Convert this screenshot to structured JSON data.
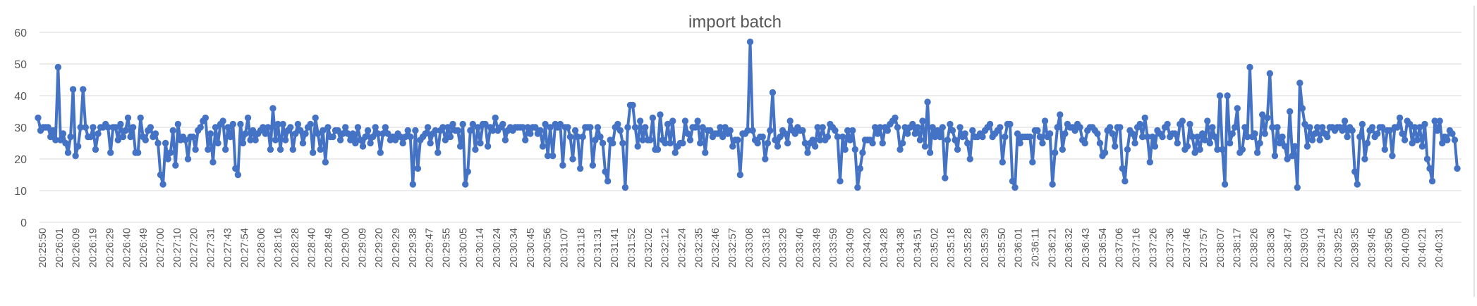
{
  "chart_data": {
    "type": "line",
    "title": "import batch",
    "xlabel": "",
    "ylabel": "",
    "ylim": [
      0,
      60
    ],
    "ytick_step": 10,
    "grid": true,
    "legend": "none",
    "colors": {
      "series": "#4472c4",
      "grid": "#d9d9d9",
      "text": "#595959"
    },
    "x_tick_labels": [
      "20:25:50",
      "20:26:01",
      "20:26:09",
      "20:26:19",
      "20:26:29",
      "20:26:40",
      "20:26:49",
      "20:27:00",
      "20:27:10",
      "20:27:20",
      "20:27:31",
      "20:27:43",
      "20:27:54",
      "20:28:06",
      "20:28:16",
      "20:28:28",
      "20:28:40",
      "20:28:49",
      "20:29:00",
      "20:29:09",
      "20:29:20",
      "20:29:29",
      "20:29:38",
      "20:29:47",
      "20:29:55",
      "20:30:05",
      "20:30:14",
      "20:30:24",
      "20:30:34",
      "20:30:45",
      "20:30:56",
      "20:31:07",
      "20:31:18",
      "20:31:31",
      "20:31:41",
      "20:31:52",
      "20:32:02",
      "20:32:12",
      "20:32:24",
      "20:32:35",
      "20:32:46",
      "20:32:57",
      "20:33:08",
      "20:33:18",
      "20:33:29",
      "20:33:40",
      "20:33:49",
      "20:33:59",
      "20:34:09",
      "20:34:20",
      "20:34:28",
      "20:34:38",
      "20:34:51",
      "20:35:02",
      "20:35:18",
      "20:35:28",
      "20:35:39",
      "20:35:50",
      "20:36:01",
      "20:36:11",
      "20:36:21",
      "20:36:32",
      "20:36:43",
      "20:36:54",
      "20:37:06",
      "20:37:16",
      "20:37:26",
      "20:37:36",
      "20:37:46",
      "20:37:57",
      "20:38:07",
      "20:38:17",
      "20:38:26",
      "20:38:36",
      "20:38:47",
      "20:39:03",
      "20:39:14",
      "20:39:25",
      "20:39:35",
      "20:39:45",
      "20:39:56",
      "20:40:09",
      "20:40:21",
      "20:40:31"
    ],
    "series": [
      {
        "values": [
          33,
          29,
          30,
          30,
          30,
          27,
          29,
          26,
          49,
          26,
          28,
          25,
          22,
          27,
          42,
          21,
          24,
          30,
          42,
          30,
          27,
          27,
          30,
          23,
          28,
          30,
          30,
          31,
          30,
          22,
          30,
          30,
          26,
          31,
          27,
          29,
          33,
          27,
          30,
          22,
          22,
          33,
          27,
          26,
          29,
          30,
          27,
          28,
          25,
          15,
          12,
          25,
          20,
          22,
          29,
          18,
          31,
          26,
          27,
          26,
          20,
          27,
          27,
          23,
          29,
          30,
          32,
          33,
          23,
          28,
          19,
          30,
          25,
          31,
          32,
          23,
          30,
          27,
          31,
          17,
          15,
          31,
          25,
          28,
          33,
          26,
          29,
          26,
          28,
          29,
          30,
          28,
          30,
          23,
          36,
          26,
          31,
          23,
          31,
          26,
          29,
          30,
          23,
          28,
          31,
          29,
          25,
          28,
          30,
          31,
          22,
          33,
          28,
          23,
          29,
          19,
          30,
          27,
          27,
          29,
          29,
          26,
          28,
          30,
          28,
          26,
          28,
          25,
          30,
          26,
          24,
          27,
          29,
          25,
          27,
          30,
          28,
          22,
          28,
          30,
          28,
          26,
          27,
          26,
          28,
          27,
          25,
          27,
          29,
          27,
          12,
          29,
          17,
          26,
          27,
          28,
          30,
          25,
          28,
          29,
          22,
          29,
          30,
          26,
          30,
          27,
          31,
          29,
          29,
          24,
          31,
          12,
          16,
          29,
          31,
          23,
          30,
          25,
          31,
          31,
          24,
          30,
          29,
          33,
          29,
          30,
          31,
          26,
          29,
          30,
          29,
          30,
          30,
          30,
          30,
          26,
          30,
          28,
          30,
          30,
          28,
          29,
          24,
          31,
          21,
          30,
          21,
          31,
          30,
          31,
          18,
          30,
          30,
          27,
          20,
          29,
          27,
          17,
          27,
          30,
          30,
          30,
          18,
          26,
          30,
          27,
          25,
          16,
          13,
          26,
          25,
          30,
          31,
          29,
          25,
          11,
          30,
          37,
          37,
          30,
          24,
          32,
          26,
          30,
          26,
          26,
          33,
          23,
          23,
          34,
          26,
          25,
          31,
          25,
          32,
          22,
          24,
          25,
          25,
          32,
          28,
          26,
          30,
          30,
          32,
          25,
          30,
          22,
          29,
          29,
          27,
          28,
          28,
          30,
          27,
          30,
          28,
          29,
          24,
          26,
          26,
          15,
          28,
          28,
          29,
          57,
          29,
          26,
          25,
          27,
          27,
          20,
          25,
          29,
          41,
          26,
          24,
          27,
          29,
          28,
          25,
          32,
          29,
          28,
          30,
          29,
          29,
          25,
          22,
          25,
          26,
          24,
          30,
          26,
          30,
          26,
          27,
          31,
          30,
          29,
          27,
          13,
          27,
          23,
          29,
          26,
          29,
          23,
          11,
          17,
          22,
          26,
          26,
          26,
          25,
          30,
          28,
          30,
          25,
          30,
          29,
          31,
          32,
          33,
          30,
          23,
          25,
          30,
          28,
          30,
          31,
          28,
          30,
          26,
          32,
          24,
          38,
          22,
          30,
          27,
          29,
          27,
          30,
          14,
          26,
          31,
          29,
          26,
          23,
          30,
          27,
          28,
          25,
          20,
          29,
          27,
          27,
          28,
          27,
          29,
          30,
          31,
          27,
          28,
          29,
          30,
          19,
          27,
          31,
          31,
          13,
          11,
          28,
          25,
          27,
          27,
          27,
          27,
          19,
          29,
          29,
          27,
          25,
          32,
          27,
          28,
          12,
          22,
          30,
          34,
          23,
          28,
          31,
          30,
          30,
          29,
          31,
          30,
          26,
          25,
          29,
          30,
          30,
          29,
          28,
          25,
          21,
          22,
          29,
          30,
          28,
          24,
          30,
          30,
          17,
          13,
          23,
          29,
          28,
          25,
          30,
          31,
          27,
          33,
          27,
          19,
          27,
          24,
          29,
          28,
          27,
          30,
          31,
          27,
          28,
          28,
          25,
          31,
          32,
          23,
          24,
          31,
          27,
          22,
          27,
          23,
          28,
          26,
          32,
          25,
          30,
          27,
          23,
          40,
          23,
          12,
          40,
          25,
          28,
          30,
          36,
          22,
          23,
          30,
          27,
          49,
          27,
          28,
          22,
          25,
          34,
          28,
          33,
          47,
          30,
          21,
          30,
          25,
          27,
          24,
          20,
          35,
          21,
          24,
          11,
          44,
          36,
          31,
          24,
          30,
          26,
          28,
          30,
          26,
          30,
          28,
          27,
          30,
          30,
          29,
          30,
          30,
          29,
          32,
          27,
          30,
          29,
          16,
          12,
          27,
          31,
          20,
          25,
          29,
          30,
          27,
          28,
          30,
          30,
          23,
          29,
          29,
          21,
          30,
          30,
          33,
          28,
          26,
          32,
          31,
          25,
          30,
          26,
          30,
          24,
          31,
          20,
          17,
          13,
          32,
          29,
          32,
          25,
          27,
          26,
          29,
          28,
          26,
          17
        ]
      }
    ]
  }
}
